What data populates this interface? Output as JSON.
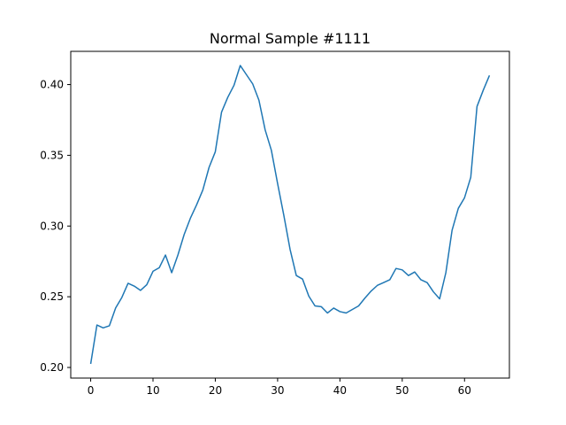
{
  "chart_data": {
    "type": "line",
    "title": "Normal Sample #1111",
    "xlabel": "",
    "ylabel": "",
    "xlim": [
      -3.2,
      67.2
    ],
    "ylim": [
      0.1925,
      0.4235
    ],
    "x_ticks": [
      0,
      10,
      20,
      30,
      40,
      50,
      60
    ],
    "y_ticks": [
      0.2,
      0.25,
      0.3,
      0.35,
      0.4
    ],
    "y_tick_labels": [
      "0.20",
      "0.25",
      "0.30",
      "0.35",
      "0.40"
    ],
    "grid": false,
    "line_color": "#1f77b4",
    "series": [
      {
        "x": [
          0,
          1,
          2,
          3,
          4,
          5,
          6,
          7,
          8,
          9,
          10,
          11,
          12,
          13,
          14,
          15,
          16,
          17,
          18,
          19,
          20,
          21,
          22,
          23,
          24,
          25,
          26,
          27,
          28,
          29,
          30,
          31,
          32,
          33,
          34,
          35,
          36,
          37,
          38,
          39,
          40,
          41,
          42,
          43,
          44,
          45,
          46,
          47,
          48,
          49,
          50,
          51,
          52,
          53,
          54,
          55,
          56,
          57,
          58,
          59,
          60,
          61,
          62,
          63,
          64
        ],
        "values": [
          0.2025,
          0.23,
          0.228,
          0.2295,
          0.242,
          0.2495,
          0.2595,
          0.2575,
          0.2545,
          0.2585,
          0.268,
          0.2705,
          0.2795,
          0.267,
          0.2795,
          0.294,
          0.3055,
          0.315,
          0.3255,
          0.3415,
          0.3525,
          0.3805,
          0.391,
          0.3995,
          0.4135,
          0.407,
          0.4005,
          0.389,
          0.368,
          0.3535,
          0.33,
          0.3075,
          0.2835,
          0.265,
          0.2625,
          0.2505,
          0.2435,
          0.243,
          0.2385,
          0.242,
          0.2395,
          0.2385,
          0.241,
          0.2435,
          0.249,
          0.254,
          0.258,
          0.26,
          0.262,
          0.27,
          0.269,
          0.265,
          0.2675,
          0.262,
          0.26,
          0.2535,
          0.2485,
          0.267,
          0.297,
          0.3125,
          0.32,
          0.3345,
          0.3845,
          0.396,
          0.4065
        ]
      }
    ]
  }
}
